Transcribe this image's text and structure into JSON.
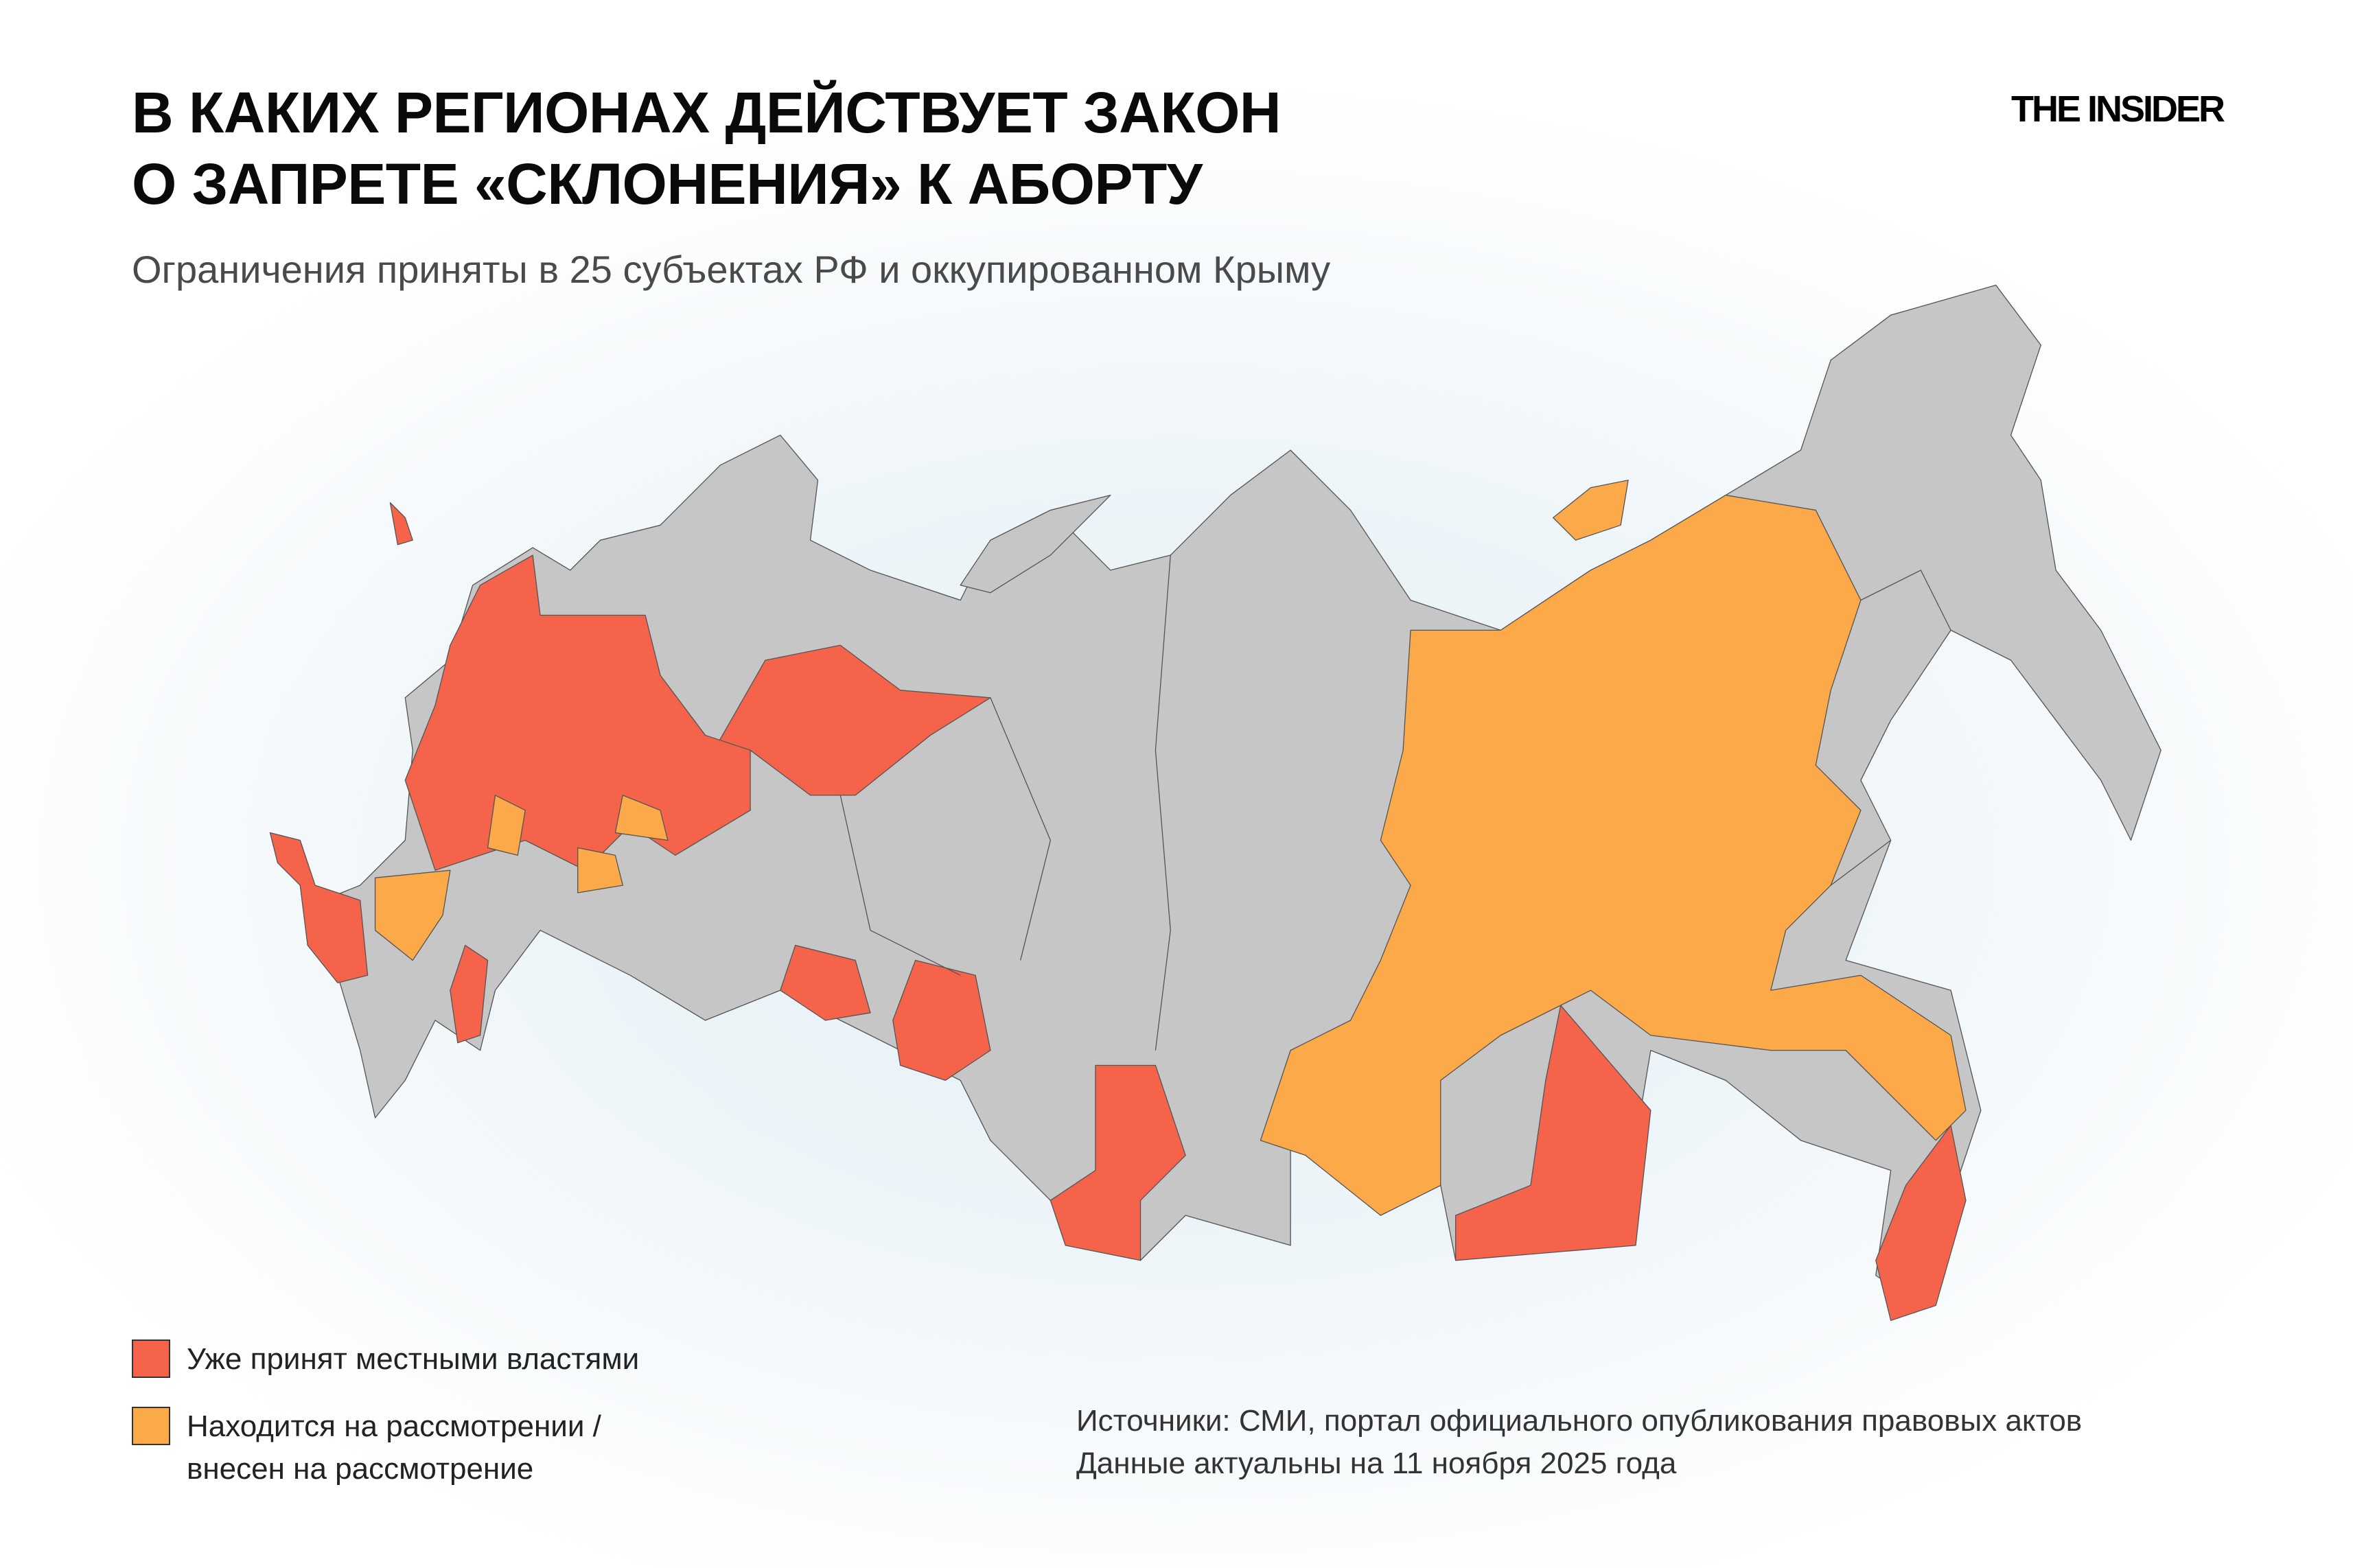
{
  "header": {
    "title_line1": "В КАКИХ РЕГИОНАХ ДЕЙСТВУЕТ ЗАКОН",
    "title_line2": "О ЗАПРЕТЕ «СКЛОНЕНИЯ» К АБОРТУ",
    "subtitle": "Ограничения приняты в 25 субъектах РФ и оккупированном Крыму",
    "logo": "THE INSIDER"
  },
  "colors": {
    "adopted": "#f4634a",
    "under_review": "#fca94a",
    "other": "#c6c6c6",
    "border": "#555555"
  },
  "legend": [
    {
      "label": "Уже принят местными властями",
      "color": "#f4634a"
    },
    {
      "label_line1": "Находится на рассмотрении /",
      "label_line2": "внесен на рассмотрение",
      "color": "#fca94a"
    }
  ],
  "footer": {
    "source": "Источники: СМИ, портал официального опубликования правовых актов",
    "date": "Данные актуальны на 11 ноября 2025 года"
  }
}
